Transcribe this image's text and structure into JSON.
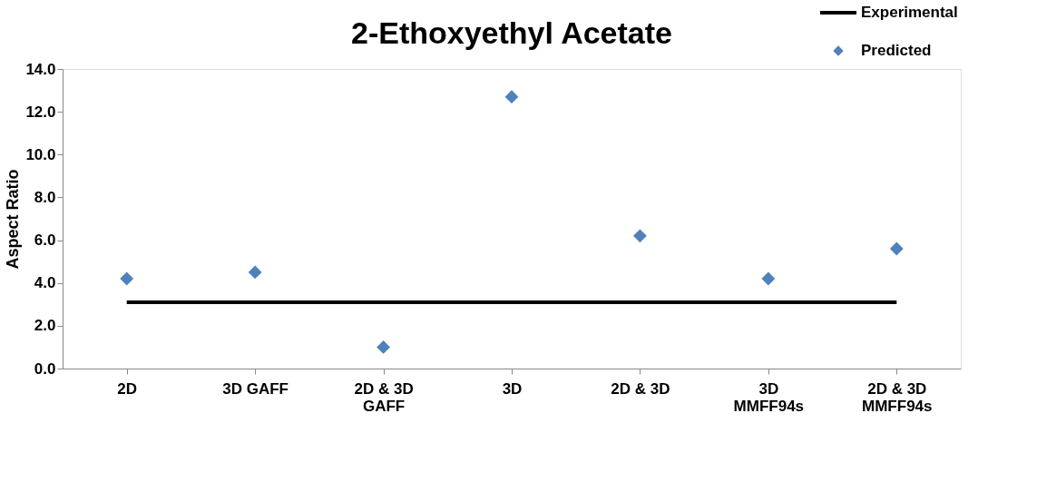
{
  "chart_data": {
    "type": "scatter",
    "title": "2-Ethoxyethyl Acetate",
    "ylabel": "Aspect Ratio",
    "categories": [
      "2D",
      "3D GAFF",
      "2D & 3D GAFF",
      "3D",
      "2D & 3D",
      "3D MMFF94s",
      "2D & 3D MMFF94s"
    ],
    "series": [
      {
        "name": "Experimental",
        "type": "line",
        "color": "#000000",
        "values": [
          3.1,
          3.1,
          3.1,
          3.1,
          3.1,
          3.1,
          3.1
        ]
      },
      {
        "name": "Predicted",
        "color": "#4f81bd",
        "marker": "diamond",
        "values": [
          4.2,
          4.5,
          1.0,
          12.7,
          6.2,
          4.2,
          5.6
        ]
      }
    ],
    "ylim": [
      0,
      14
    ],
    "yticks": [
      {
        "value": 0,
        "label": "0.0"
      },
      {
        "value": 2,
        "label": "2.0"
      },
      {
        "value": 4,
        "label": "4.0"
      },
      {
        "value": 6,
        "label": "6.0"
      },
      {
        "value": 8,
        "label": "8.0"
      },
      {
        "value": 10,
        "label": "10.0"
      },
      {
        "value": 12,
        "label": "12.0"
      },
      {
        "value": 14,
        "label": "14.0"
      }
    ],
    "grid": false,
    "legend": "top right"
  }
}
